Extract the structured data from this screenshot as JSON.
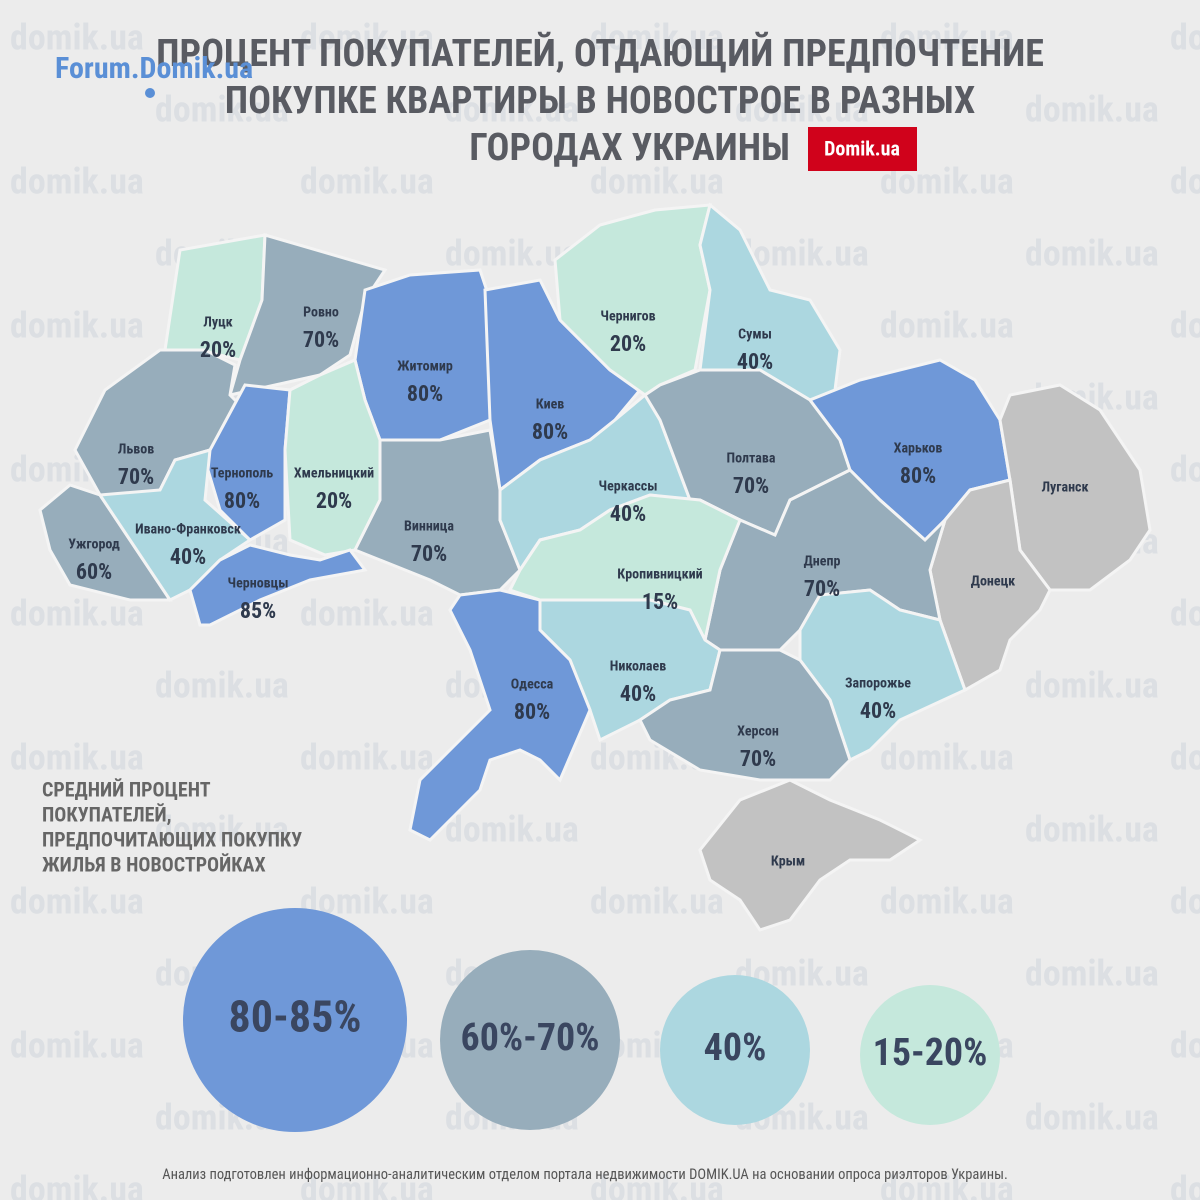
{
  "header": {
    "title": [
      "ПРОЦЕНТ ПОКУПАТЕЛЕЙ, ОТДАЮЩИЙ ПРЕДПОЧТЕНИЕ",
      "ПОКУПКЕ КВАРТИРЫ В НОВОСТРОЕ В РАЗНЫХ",
      "ГОРОДАХ УКРАИНЫ"
    ],
    "forum_logo": "Forum.Domik.ua",
    "logo": "Domik.ua"
  },
  "watermark": "domik.ua",
  "regions": [
    {
      "name": "Луцк",
      "label": "20%",
      "color": "#c5e8dc"
    },
    {
      "name": "Ровно",
      "label": "70%",
      "color": "#97adbb"
    },
    {
      "name": "Житомир",
      "label": "80%",
      "color": "#6f98d8"
    },
    {
      "name": "Киев",
      "label": "80%",
      "color": "#6f98d8"
    },
    {
      "name": "Чернигов",
      "label": "20%",
      "color": "#c5e8dc"
    },
    {
      "name": "Сумы",
      "label": "40%",
      "color": "#acd7e0"
    },
    {
      "name": "Львов",
      "label": "70%",
      "color": "#97adbb"
    },
    {
      "name": "Тернополь",
      "label": "80%",
      "color": "#6f98d8"
    },
    {
      "name": "Хмельницкий",
      "label": "20%",
      "color": "#c5e8dc"
    },
    {
      "name": "Ужгород",
      "label": "60%",
      "color": "#97adbb"
    },
    {
      "name": "Ивано-Франковск",
      "label": "40%",
      "color": "#acd7e0"
    },
    {
      "name": "Черновцы",
      "label": "85%",
      "color": "#6f98d8"
    },
    {
      "name": "Винница",
      "label": "70%",
      "color": "#97adbb"
    },
    {
      "name": "Черкассы",
      "label": "40%",
      "color": "#acd7e0"
    },
    {
      "name": "Полтава",
      "label": "70%",
      "color": "#97adbb"
    },
    {
      "name": "Харьков",
      "label": "80%",
      "color": "#6f98d8"
    },
    {
      "name": "Луганск",
      "color": "#c2c2c2"
    },
    {
      "name": "Донецк",
      "color": "#c2c2c2"
    },
    {
      "name": "Днепр",
      "label": "70%",
      "color": "#97adbb"
    },
    {
      "name": "Кропивницкий",
      "label": "15%",
      "color": "#c5e8dc"
    },
    {
      "name": "Запорожье",
      "label": "40%",
      "color": "#acd7e0"
    },
    {
      "name": "Николаев",
      "label": "40%",
      "color": "#acd7e0"
    },
    {
      "name": "Херсон",
      "label": "70%",
      "color": "#97adbb"
    },
    {
      "name": "Одесса",
      "label": "80%",
      "color": "#6f98d8"
    },
    {
      "name": "Крым",
      "color": "#c2c2c2"
    }
  ],
  "legend": {
    "title": [
      "СРЕДНИЙ ПРОЦЕНТ",
      "ПОКУПАТЕЛЕЙ,",
      "ПРЕДПОЧИТАЮЩИХ ПОКУПКУ",
      "ЖИЛЬЯ В НОВОСТРОЙКАХ"
    ],
    "items": [
      {
        "label": "80-85%",
        "color": "#6f98d8"
      },
      {
        "label": "60%-70%",
        "color": "#97adbb"
      },
      {
        "label": "40%",
        "color": "#acd7e0"
      },
      {
        "label": "15-20%",
        "color": "#c5e8dc"
      }
    ]
  },
  "footer": "Анализ подготовлен информационно-аналитическим отделом портала недвижимости DOMIK.UA на основании опроса риэлторов Украины."
}
